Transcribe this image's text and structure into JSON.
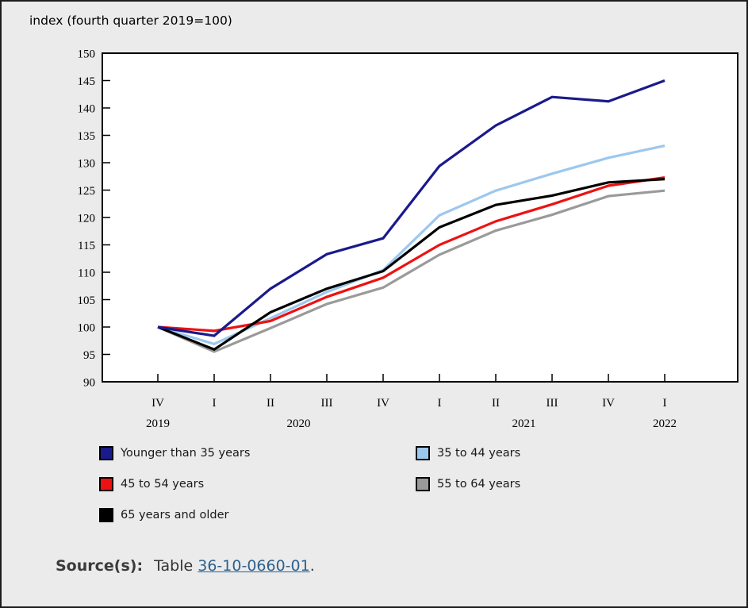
{
  "title": "index (fourth quarter 2019=100)",
  "chart_data": {
    "type": "line",
    "title": "index (fourth quarter 2019=100)",
    "categories": [
      "2019 Q4",
      "2020 Q1",
      "2020 Q2",
      "2020 Q3",
      "2020 Q4",
      "2021 Q1",
      "2021 Q2",
      "2021 Q3",
      "2021 Q4",
      "2022 Q1"
    ],
    "x_axis": {
      "quarter_labels": [
        "IV",
        "I",
        "II",
        "III",
        "IV",
        "I",
        "II",
        "III",
        "IV",
        "I"
      ],
      "year_labels": [
        {
          "text": "2019",
          "anchor": 0
        },
        {
          "text": "2020",
          "anchor": 2.5
        },
        {
          "text": "2021",
          "anchor": 6.5
        },
        {
          "text": "2022",
          "anchor": 9
        }
      ]
    },
    "y_axis": {
      "ticks": [
        150,
        145,
        140,
        135,
        130,
        125,
        120,
        115,
        110,
        105,
        100,
        95,
        90
      ],
      "min": 90,
      "max": 150
    },
    "ylim": [
      90,
      150
    ],
    "grid": false,
    "legend_position": "bottom",
    "series": [
      {
        "name": "Younger than 35 years",
        "color": "#1a1a8c",
        "values": [
          100,
          98.4,
          107,
          113.3,
          116.2,
          129.4,
          136.8,
          142,
          141.2,
          145
        ]
      },
      {
        "name": "35 to 44 years",
        "color": "#9dc8ee",
        "values": [
          100,
          96.9,
          101.6,
          106.4,
          110.4,
          120.4,
          124.9,
          128,
          130.9,
          133.1
        ]
      },
      {
        "name": "45 to 54 years",
        "color": "#ee1111",
        "values": [
          100,
          99.3,
          101.1,
          105.5,
          109,
          115,
          119.3,
          122.4,
          125.8,
          127.3
        ]
      },
      {
        "name": "55 to 64 years",
        "color": "#9a9a9a",
        "values": [
          100,
          95.5,
          99.8,
          104.2,
          107.2,
          113.2,
          117.6,
          120.5,
          123.9,
          124.9
        ]
      },
      {
        "name": "65 years and older",
        "color": "#000000",
        "values": [
          100,
          95.9,
          102.7,
          107,
          110.2,
          118.2,
          122.3,
          124,
          126.4,
          127
        ]
      }
    ]
  },
  "source": {
    "label": "Source(s):",
    "prefix": "Table",
    "link_text": "36-10-0660-01",
    "suffix": "."
  },
  "colors": {
    "background": "#ebebeb",
    "plot_background": "#ffffff",
    "axis": "#000000",
    "link": "#2d618e"
  }
}
